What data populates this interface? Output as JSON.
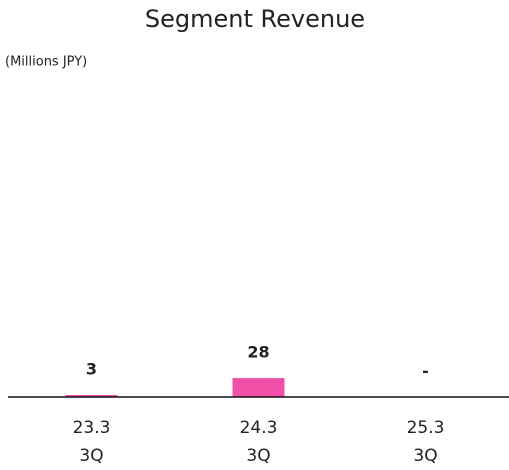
{
  "chart_data": {
    "type": "bar",
    "title": "Segment Revenue",
    "subtitle": "(Millions JPY)",
    "categories": [
      [
        "23.3",
        "3Q"
      ],
      [
        "24.3",
        "3Q"
      ],
      [
        "25.3",
        "3Q"
      ]
    ],
    "values": [
      3,
      28,
      null
    ],
    "value_labels": [
      "3",
      "28",
      "-"
    ],
    "color": "#f050a8",
    "ylim": [
      0,
      440
    ]
  }
}
